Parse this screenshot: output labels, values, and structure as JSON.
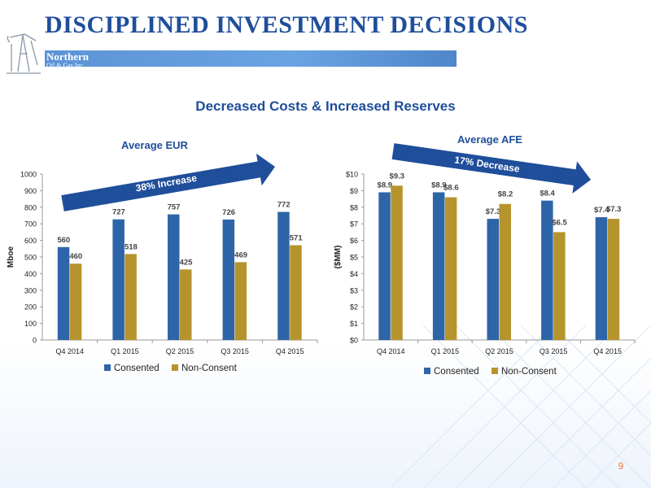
{
  "page": {
    "title": "DISCIPLINED INVESTMENT DECISIONS",
    "subtitle": "Decreased Costs & Increased Reserves",
    "page_number": "9",
    "logo": {
      "line1": "Northern",
      "line2": "Oil & Gas Inc."
    }
  },
  "colors": {
    "consented": "#2e65a8",
    "non_consent": "#b6942d",
    "arrow": "#1f4e9b",
    "title": "#1f4e9b"
  },
  "chart_data": [
    {
      "type": "bar",
      "title": "Average EUR",
      "ylabel": "Mboe",
      "xlabel": "",
      "categories": [
        "Q4 2014",
        "Q1 2015",
        "Q2 2015",
        "Q3 2015",
        "Q4 2015"
      ],
      "ylim": [
        0,
        1000
      ],
      "yticks": [
        "0",
        "100",
        "200",
        "300",
        "400",
        "500",
        "600",
        "700",
        "800",
        "900",
        "1000"
      ],
      "series": [
        {
          "name": "Consented",
          "values": [
            560,
            727,
            757,
            726,
            772
          ],
          "labels": [
            "560",
            "727",
            "757",
            "726",
            "772"
          ]
        },
        {
          "name": "Non-Consent",
          "values": [
            460,
            518,
            425,
            469,
            571
          ],
          "labels": [
            "460",
            "518",
            "425",
            "469",
            "571"
          ]
        }
      ],
      "annotation": "38% Increase",
      "legend": "bottom",
      "grid": false
    },
    {
      "type": "bar",
      "title": "Average AFE",
      "ylabel": "($MM)",
      "xlabel": "",
      "categories": [
        "Q4 2014",
        "Q1 2015",
        "Q2 2015",
        "Q3 2015",
        "Q4 2015"
      ],
      "ylim": [
        0,
        10
      ],
      "yticks": [
        "$0",
        "$1",
        "$2",
        "$3",
        "$4",
        "$5",
        "$6",
        "$7",
        "$8",
        "$9",
        "$10"
      ],
      "series": [
        {
          "name": "Consented",
          "values": [
            8.9,
            8.9,
            7.3,
            8.4,
            7.4
          ],
          "labels": [
            "$8.9",
            "$8.9",
            "$7.3",
            "$8.4",
            "$7.4"
          ]
        },
        {
          "name": "Non-Consent",
          "values": [
            9.3,
            8.6,
            8.2,
            6.5,
            7.3
          ],
          "labels": [
            "$9.3",
            "$8.6",
            "$8.2",
            "$6.5",
            "$7.3"
          ]
        }
      ],
      "annotation": "17% Decrease",
      "legend": "bottom",
      "grid": false
    }
  ]
}
